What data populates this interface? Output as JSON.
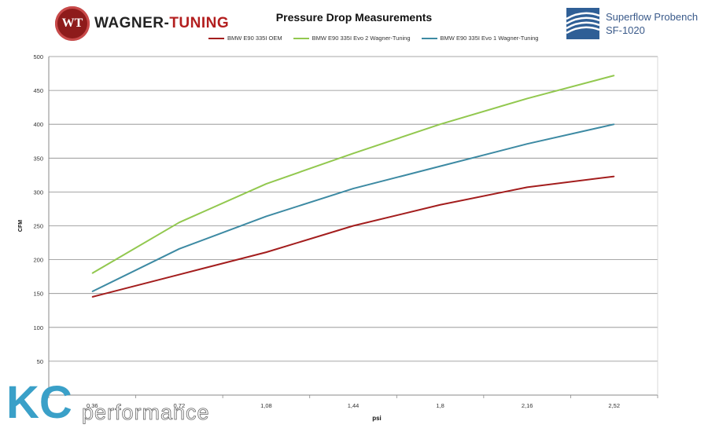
{
  "header": {
    "brand_left": "WAGNER-TUNING",
    "brand_left_part1": "WAGNER-",
    "brand_left_part2": "TUNING",
    "brand_left_badge": "WT",
    "brand_right_line1": "Superflow Probench",
    "brand_right_line2": "SF-1020"
  },
  "watermark": {
    "letters": "KC",
    "word": "performance"
  },
  "chart_data": {
    "type": "line",
    "title": "Pressure Drop Measurements",
    "xlabel": "psi",
    "ylabel": "CFM",
    "categories": [
      "0,36",
      "0,72",
      "1,08",
      "1,44",
      "1,8",
      "2,16",
      "2,52"
    ],
    "ylim": [
      0,
      500
    ],
    "yticks": [
      50,
      100,
      150,
      200,
      250,
      300,
      350,
      400,
      450,
      500
    ],
    "grid": true,
    "legend_position": "top",
    "series": [
      {
        "name": "BMW E90 335I OEM",
        "color": "#a31d1d",
        "values": [
          145,
          178,
          211,
          250,
          281,
          307,
          323
        ]
      },
      {
        "name": "BMW E90 335I Evo 2 Wagner-Tuning",
        "color": "#92c84f",
        "values": [
          180,
          255,
          312,
          357,
          400,
          438,
          472
        ]
      },
      {
        "name": "BMW E90 335I Evo 1 Wagner-Tuning",
        "color": "#3d8aa3",
        "values": [
          153,
          216,
          264,
          305,
          338,
          371,
          400
        ]
      }
    ]
  }
}
